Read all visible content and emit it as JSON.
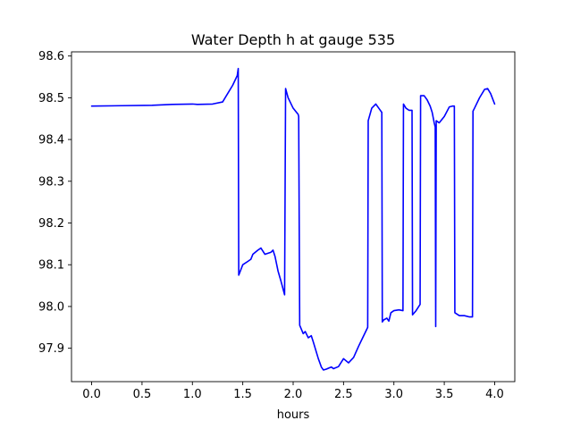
{
  "chart_data": {
    "type": "line",
    "title": "Water Depth h at gauge 535",
    "xlabel": "hours",
    "ylabel": "",
    "xlim": [
      -0.2,
      4.2
    ],
    "ylim": [
      97.82,
      98.61
    ],
    "xticks": [
      0.0,
      0.5,
      1.0,
      1.5,
      2.0,
      2.5,
      3.0,
      3.5,
      4.0
    ],
    "xtick_labels": [
      "0.0",
      "0.5",
      "1.0",
      "1.5",
      "2.0",
      "2.5",
      "3.0",
      "3.5",
      "4.0"
    ],
    "yticks": [
      97.9,
      98.0,
      98.1,
      98.2,
      98.3,
      98.4,
      98.5,
      98.6
    ],
    "ytick_labels": [
      "97.9",
      "98.0",
      "98.1",
      "98.2",
      "98.3",
      "98.4",
      "98.5",
      "98.6"
    ],
    "grid": false,
    "line_color": "#0000ff",
    "series": [
      {
        "name": "",
        "x": [
          0.0,
          0.3,
          0.6,
          0.8,
          1.0,
          1.05,
          1.2,
          1.3,
          1.35,
          1.4,
          1.445,
          1.455,
          1.46,
          1.5,
          1.55,
          1.58,
          1.6,
          1.65,
          1.68,
          1.72,
          1.78,
          1.8,
          1.82,
          1.85,
          1.88,
          1.915,
          1.925,
          1.95,
          2.0,
          2.05,
          2.055,
          2.065,
          2.1,
          2.12,
          2.15,
          2.18,
          2.2,
          2.25,
          2.28,
          2.3,
          2.33,
          2.35,
          2.38,
          2.4,
          2.45,
          2.5,
          2.55,
          2.6,
          2.65,
          2.7,
          2.74,
          2.745,
          2.78,
          2.82,
          2.85,
          2.88,
          2.885,
          2.9,
          2.93,
          2.95,
          2.97,
          3.0,
          3.05,
          3.09,
          3.095,
          3.12,
          3.15,
          3.18,
          3.185,
          3.22,
          3.26,
          3.265,
          3.3,
          3.33,
          3.36,
          3.38,
          3.4,
          3.41,
          3.415,
          3.42,
          3.45,
          3.5,
          3.55,
          3.58,
          3.6,
          3.605,
          3.65,
          3.7,
          3.75,
          3.78,
          3.785,
          3.8,
          3.85,
          3.9,
          3.93,
          3.96,
          4.0
        ],
        "y": [
          98.48,
          98.481,
          98.482,
          98.484,
          98.485,
          98.484,
          98.485,
          98.49,
          98.51,
          98.53,
          98.553,
          98.57,
          98.075,
          98.1,
          98.108,
          98.113,
          98.125,
          98.135,
          98.14,
          98.125,
          98.13,
          98.135,
          98.12,
          98.085,
          98.06,
          98.028,
          98.522,
          98.5,
          98.475,
          98.46,
          98.455,
          97.955,
          97.935,
          97.94,
          97.925,
          97.93,
          97.915,
          97.875,
          97.855,
          97.848,
          97.85,
          97.852,
          97.855,
          97.851,
          97.856,
          97.875,
          97.865,
          97.878,
          97.905,
          97.93,
          97.95,
          98.445,
          98.475,
          98.485,
          98.475,
          98.465,
          97.963,
          97.968,
          97.972,
          97.965,
          97.985,
          97.99,
          97.992,
          97.99,
          98.485,
          98.475,
          98.47,
          98.47,
          97.98,
          97.99,
          98.005,
          98.505,
          98.505,
          98.495,
          98.48,
          98.465,
          98.44,
          98.43,
          97.952,
          98.445,
          98.44,
          98.455,
          98.478,
          98.48,
          98.48,
          97.985,
          97.978,
          97.978,
          97.975,
          97.975,
          98.468,
          98.475,
          98.5,
          98.52,
          98.522,
          98.51,
          98.485
        ]
      }
    ]
  }
}
